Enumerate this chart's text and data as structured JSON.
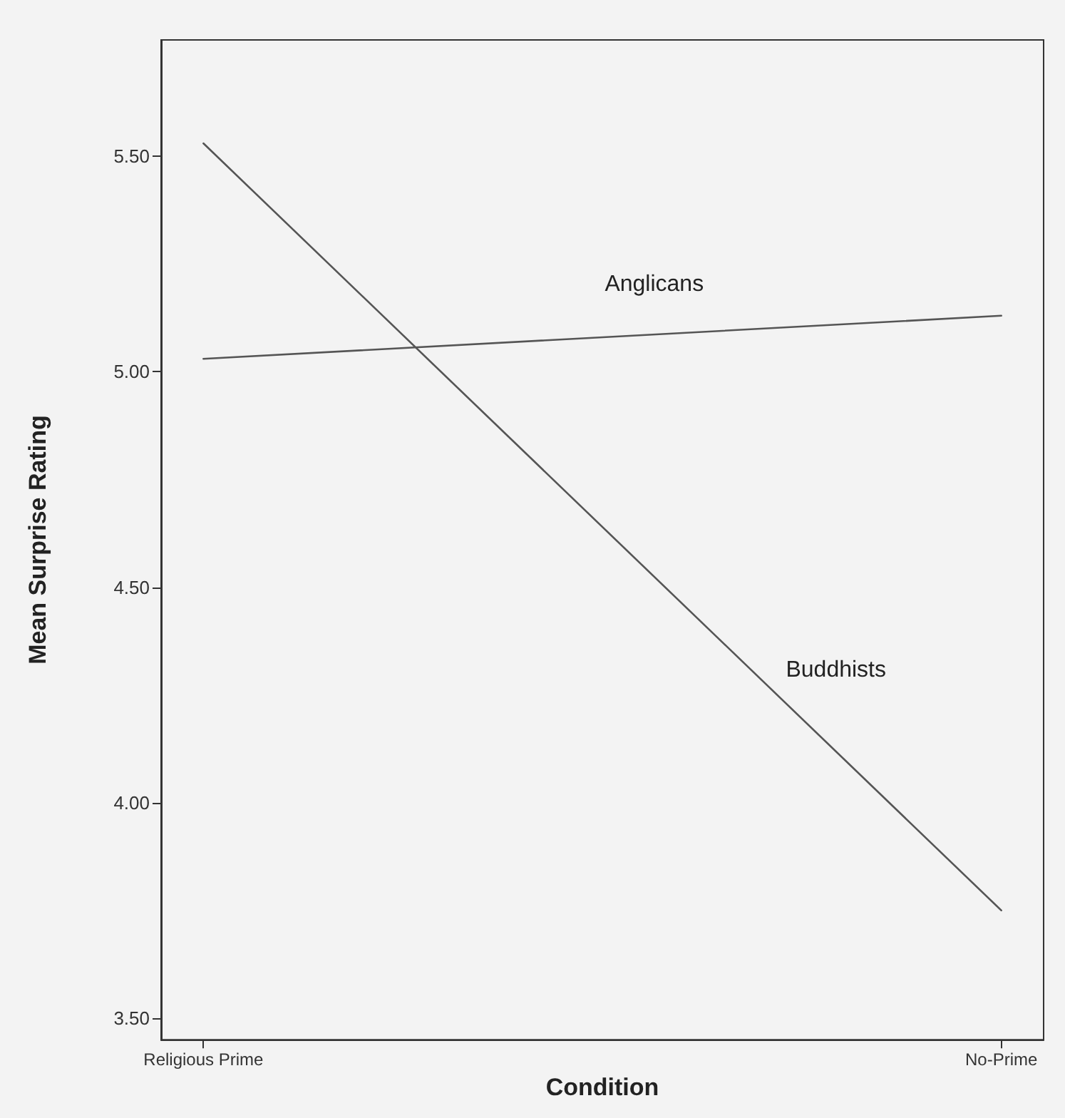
{
  "chart_data": {
    "type": "line",
    "xlabel": "Condition",
    "ylabel": "Mean Surprise Rating",
    "categories": [
      "Religious Prime",
      "No-Prime"
    ],
    "series": [
      {
        "name": "Anglicans",
        "color": "#555555",
        "values": [
          5.03,
          5.13
        ]
      },
      {
        "name": "Buddhists",
        "color": "#555555",
        "values": [
          5.53,
          3.75
        ]
      }
    ],
    "ylim": [
      3.45,
      5.77
    ],
    "yticks": [
      {
        "value": 3.5,
        "label": "3.50"
      },
      {
        "value": 4,
        "label": "4.00"
      },
      {
        "value": 4.5,
        "label": "4.50"
      },
      {
        "value": 5,
        "label": "5.00"
      },
      {
        "value": 5.5,
        "label": "5.50"
      }
    ],
    "grid": false,
    "legend": false,
    "marker": "none",
    "line_style": "solid"
  }
}
